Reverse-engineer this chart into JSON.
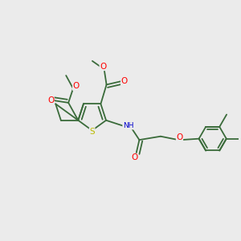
{
  "bg_color": "#ebebeb",
  "bond_color": "#3a6b3a",
  "atom_colors": {
    "S": "#bbbb00",
    "O": "#ff0000",
    "N": "#0000cc",
    "C": "#3a6b3a"
  },
  "bond_width": 1.3,
  "figsize": [
    3.0,
    3.0
  ],
  "dpi": 100
}
